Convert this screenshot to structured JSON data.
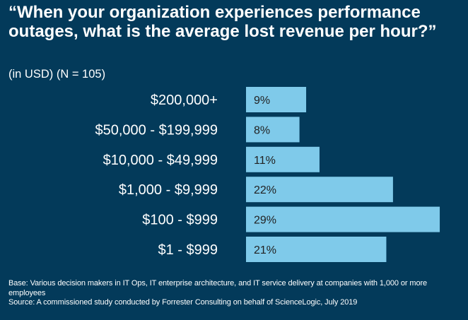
{
  "chart_data": {
    "type": "bar",
    "orientation": "horizontal",
    "title": "“When your organization experiences performance outages, what is the average lost revenue per hour?”",
    "subtitle": "(in USD) (N = 105)",
    "categories": [
      "$200,000+",
      "$50,000 - $199,999",
      "$10,000 - $49,999",
      "$1,000 - $9,999",
      "$100 - $999",
      "$1 - $999"
    ],
    "values": [
      9,
      8,
      11,
      22,
      29,
      21
    ],
    "value_labels": [
      "9%",
      "8%",
      "11%",
      "22%",
      "29%",
      "21%"
    ],
    "unit": "%",
    "grid": false,
    "colors": {
      "background": "#033a5a",
      "bar": "#7fcaea",
      "label": "#222222",
      "text": "#ffffff"
    }
  },
  "footer": {
    "base": "Base: Various decision makers in IT Ops, IT enterprise architecture, and IT service delivery at companies with 1,000 or more employees",
    "source": "Source: A commissioned study conducted by Forrester Consulting on behalf of ScienceLogic, July 2019"
  }
}
